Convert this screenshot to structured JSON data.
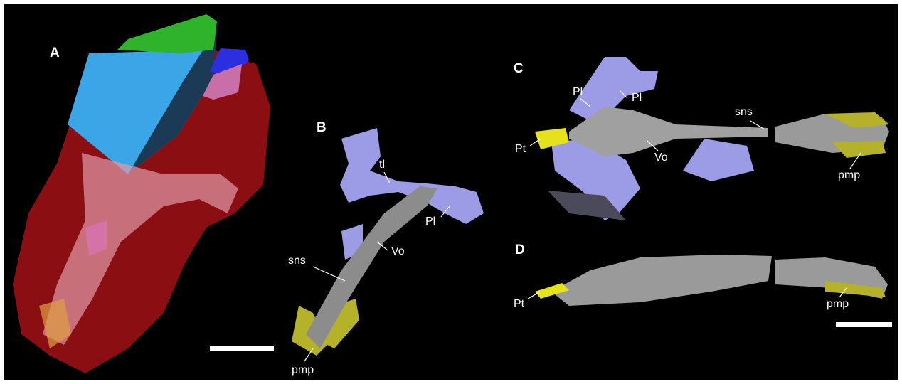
{
  "panels": [
    {
      "label": "A"
    },
    {
      "label": "B",
      "annotations": [
        "tl",
        "Pl",
        "sns",
        "Vo",
        "pmp"
      ]
    },
    {
      "label": "C",
      "annotations": [
        "Pl",
        "Pl",
        "sns",
        "Pt",
        "Vo",
        "pmp"
      ]
    },
    {
      "label": "D",
      "annotations": [
        "Pt",
        "pmp"
      ]
    }
  ]
}
